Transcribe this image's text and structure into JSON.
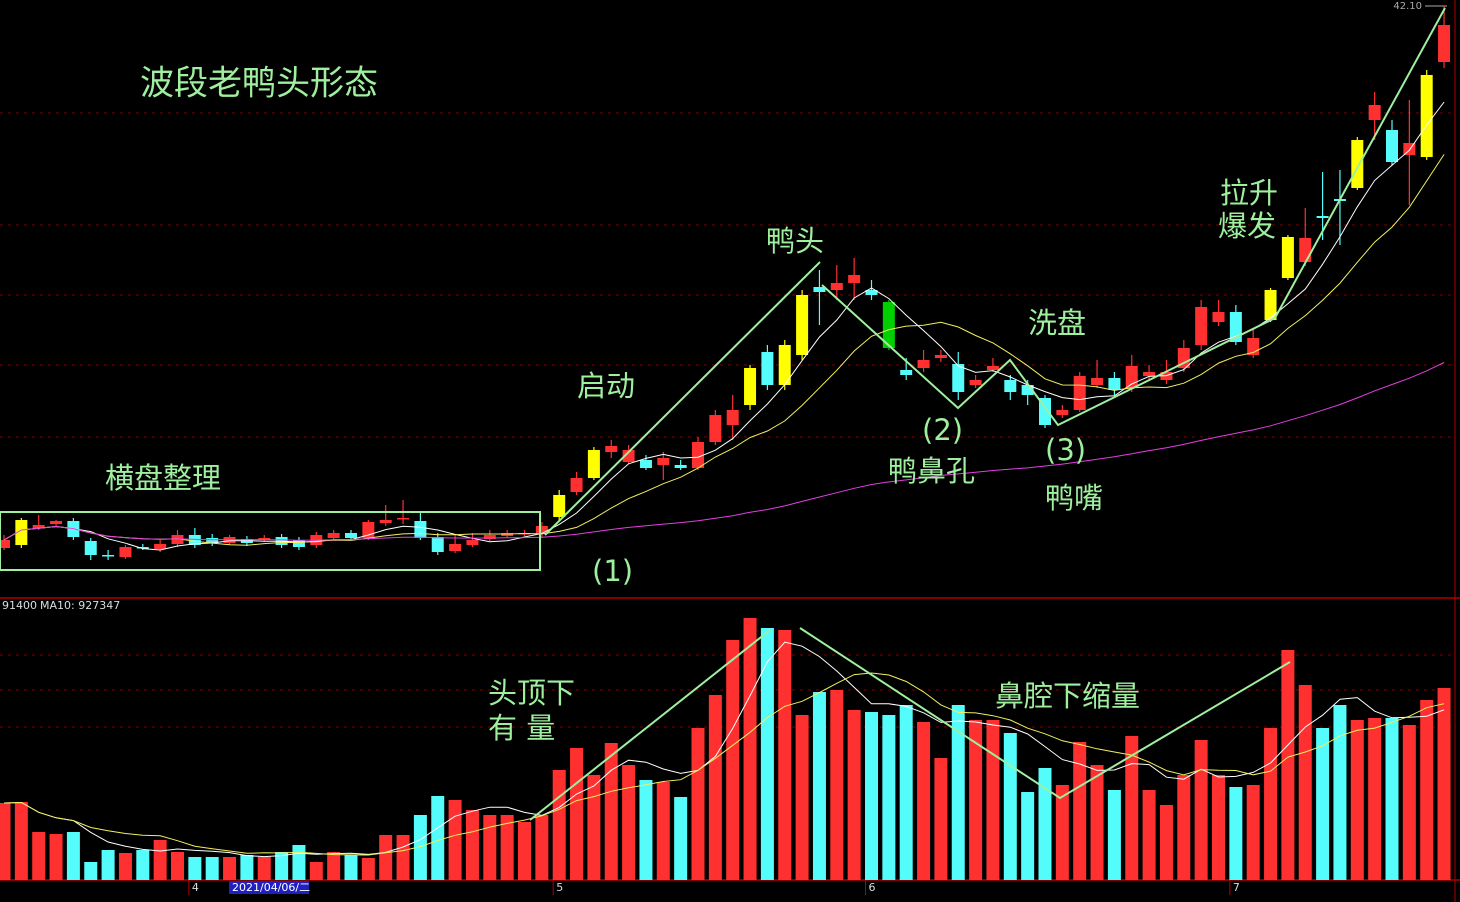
{
  "chart_data": {
    "type": "candlestick",
    "title": "波段老鸭头形态",
    "annotations": [
      "横盘整理",
      "启动",
      "鸭头",
      "洗盘",
      "(2)",
      "鸭鼻孔",
      "(3)",
      "鸭嘴",
      "(1)",
      "拉升",
      "爆发",
      "头顶下",
      "有  量",
      "鼻腔下缩量"
    ],
    "categories": [
      null,
      null,
      null,
      null,
      null,
      null,
      null,
      null,
      null,
      null,
      null,
      "4",
      null,
      null,
      null,
      null,
      null,
      null,
      null,
      null,
      null,
      null,
      null,
      null,
      null,
      null,
      null,
      null,
      null,
      null,
      null,
      null,
      "5",
      null,
      null,
      null,
      null,
      null,
      null,
      null,
      null,
      null,
      null,
      null,
      null,
      null,
      null,
      null,
      null,
      null,
      "6",
      null,
      null,
      null,
      null,
      null,
      null,
      null,
      null,
      null,
      null,
      null,
      null,
      null,
      null,
      null,
      null,
      null,
      null,
      null,
      null,
      "7",
      null,
      null,
      null,
      null,
      null,
      null,
      null,
      null,
      null,
      null,
      null,
      null
    ],
    "cursor_date": "2021/04/06/二",
    "open": [
      20.42,
      20.54,
      21.22,
      21.38,
      21.5,
      20.7,
      20.14,
      20.06,
      20.46,
      20.38,
      20.58,
      20.94,
      20.82,
      20.62,
      20.78,
      20.74,
      20.86,
      20.74,
      20.54,
      20.82,
      21.02,
      20.82,
      21.42,
      21.58,
      21.5,
      20.86,
      20.3,
      20.54,
      20.78,
      20.9,
      20.98,
      20.98,
      21.66,
      22.66,
      23.22,
      24.26,
      23.86,
      23.94,
      23.74,
      23.74,
      23.62,
      24.66,
      25.34,
      26.14,
      28.26,
      26.94,
      28.14,
      30.86,
      30.74,
      31.02,
      30.74,
      30.26,
      27.54,
      27.62,
      28.02,
      27.78,
      26.94,
      27.54,
      27.14,
      26.94,
      26.42,
      25.74,
      25.94,
      26.94,
      27.22,
      26.82,
      27.3,
      27.14,
      27.62,
      28.54,
      29.46,
      29.86,
      28.14,
      29.54,
      31.22,
      31.86,
      33.7,
      34.38,
      34.82,
      37.54,
      37.14,
      36.14,
      36.06,
      39.86
    ],
    "high": [
      20.94,
      21.62,
      21.74,
      21.54,
      21.62,
      20.82,
      20.34,
      20.54,
      20.58,
      20.74,
      21.14,
      21.22,
      20.98,
      20.94,
      20.9,
      20.94,
      20.98,
      20.86,
      21.06,
      21.14,
      21.14,
      21.54,
      22.14,
      22.34,
      21.86,
      21.02,
      20.94,
      21.02,
      21.14,
      21.14,
      21.14,
      21.46,
      22.74,
      23.46,
      24.46,
      24.74,
      24.54,
      24.14,
      24.26,
      23.94,
      24.86,
      25.94,
      26.54,
      27.74,
      28.54,
      28.74,
      30.74,
      31.54,
      31.74,
      32.02,
      31.14,
      30.34,
      28.02,
      28.34,
      28.34,
      28.26,
      27.34,
      28.02,
      27.34,
      27.14,
      26.54,
      26.14,
      27.46,
      27.94,
      27.46,
      28.14,
      27.74,
      27.94,
      28.74,
      30.34,
      30.34,
      30.14,
      29.14,
      30.82,
      32.94,
      34.02,
      35.46,
      35.54,
      36.86,
      38.66,
      37.54,
      38.34,
      39.54,
      42.1
    ],
    "low": [
      20.34,
      20.42,
      21.14,
      21.3,
      20.74,
      19.94,
      19.94,
      19.98,
      20.34,
      20.26,
      20.46,
      20.42,
      20.5,
      20.54,
      20.5,
      20.66,
      20.42,
      20.34,
      20.42,
      20.74,
      20.74,
      20.74,
      21.3,
      21.38,
      20.74,
      20.14,
      20.22,
      20.46,
      20.7,
      20.82,
      20.9,
      20.82,
      21.54,
      22.54,
      23.14,
      24.02,
      23.78,
      23.54,
      23.14,
      23.54,
      23.54,
      24.54,
      24.74,
      25.94,
      26.74,
      26.74,
      27.94,
      29.34,
      30.34,
      30.34,
      30.34,
      28.34,
      27.14,
      27.46,
      27.86,
      26.34,
      26.82,
      27.46,
      26.34,
      26.14,
      25.22,
      25.62,
      25.86,
      26.82,
      26.54,
      26.66,
      27.14,
      26.98,
      27.46,
      28.34,
      29.3,
      28.54,
      28.02,
      29.46,
      31.14,
      31.7,
      32.74,
      32.54,
      34.74,
      36.74,
      35.74,
      34.14,
      35.94,
      39.62
    ],
    "close": [
      20.74,
      21.54,
      21.34,
      21.5,
      20.86,
      20.14,
      20.1,
      20.46,
      20.42,
      20.58,
      20.94,
      20.54,
      20.62,
      20.86,
      20.62,
      20.82,
      20.54,
      20.46,
      20.94,
      21.02,
      20.82,
      21.46,
      21.54,
      21.62,
      20.82,
      20.26,
      20.58,
      20.74,
      20.94,
      21.02,
      21.02,
      21.3,
      22.54,
      23.22,
      24.34,
      24.5,
      24.34,
      23.62,
      24.02,
      23.62,
      24.66,
      25.74,
      25.94,
      27.62,
      26.94,
      28.54,
      30.54,
      30.66,
      31.02,
      31.34,
      30.54,
      28.42,
      27.34,
      27.94,
      28.14,
      26.66,
      27.14,
      27.7,
      26.66,
      26.54,
      25.34,
      25.94,
      27.3,
      27.22,
      26.74,
      27.7,
      27.46,
      27.46,
      28.42,
      30.06,
      29.86,
      28.66,
      28.82,
      30.74,
      32.86,
      32.82,
      33.62,
      34.3,
      36.74,
      38.14,
      35.86,
      36.62,
      39.34,
      41.34
    ],
    "colors": [
      "#ff3030",
      "#ffff00",
      "#ff3030",
      "#ff3030",
      "#54fcfc",
      "#54fcfc",
      "#54fcfc",
      "#ff3030",
      "#54fcfc",
      "#ff3030",
      "#ff3030",
      "#54fcfc",
      "#54fcfc",
      "#ff3030",
      "#54fcfc",
      "#ff3030",
      "#54fcfc",
      "#54fcfc",
      "#ff3030",
      "#ff3030",
      "#54fcfc",
      "#ff3030",
      "#ff3030",
      "#ff3030",
      "#54fcfc",
      "#54fcfc",
      "#ff3030",
      "#ff3030",
      "#ff3030",
      "#ff3030",
      "#ff3030",
      "#ff3030",
      "#ffff00",
      "#ff3030",
      "#ffff00",
      "#ff3030",
      "#ff3030",
      "#54fcfc",
      "#ff3030",
      "#54fcfc",
      "#ff3030",
      "#ff3030",
      "#ff3030",
      "#ffff00",
      "#54fcfc",
      "#ffff00",
      "#ffff00",
      "#54fcfc",
      "#ff3030",
      "#ff3030",
      "#54fcfc",
      "#00d000",
      "#54fcfc",
      "#ff3030",
      "#ff3030",
      "#54fcfc",
      "#ff3030",
      "#ff3030",
      "#54fcfc",
      "#54fcfc",
      "#54fcfc",
      "#ff3030",
      "#ff3030",
      "#ff3030",
      "#54fcfc",
      "#ff3030",
      "#ff3030",
      "#ff3030",
      "#ff3030",
      "#ff3030",
      "#ff3030",
      "#54fcfc",
      "#ff3030",
      "#ffff00",
      "#ffff00",
      "#ff3030",
      "#54fcfc",
      "#54fcfc",
      "#ffff00",
      "#ff3030",
      "#54fcfc",
      "#ff3030",
      "#ffff00",
      "#ff3030"
    ],
    "ylim": [
      18.5,
      42.1
    ],
    "yticks": [
      {
        "value": 42.1,
        "label": "42.10"
      }
    ],
    "grid_lines": [
      37.82,
      33.34,
      30.54,
      27.74,
      24.86
    ],
    "ma": [
      {
        "period": 5,
        "color": "#ffffff"
      },
      {
        "period": 10,
        "color": "#f0f060"
      },
      {
        "period": 60,
        "color": "#e040e0"
      }
    ],
    "volume": [
      654500,
      663000,
      408000,
      391000,
      408000,
      153000,
      255000,
      229500,
      255000,
      340000,
      238000,
      195500,
      195500,
      195500,
      212500,
      195500,
      238000,
      297500,
      153000,
      238000,
      212500,
      187000,
      382500,
      382500,
      552500,
      714000,
      680000,
      595000,
      552500,
      552500,
      493000,
      552500,
      935000,
      1122000,
      892500,
      1164500,
      977500,
      850000,
      833000,
      705500,
      1292000,
      1572500,
      2040000,
      2227000,
      2142000,
      2125000,
      1402500,
      1598000,
      1615000,
      1445000,
      1428000,
      1402500,
      1487500,
      1343000,
      1037000,
      1487500,
      1360000,
      1360000,
      1249500,
      748000,
      952000,
      807500,
      1173000,
      977500,
      765000,
      1224000,
      765000,
      637500,
      892500,
      1190000,
      892500,
      790500,
      807500,
      1292000,
      1955000,
      1657500,
      1292000,
      1487500,
      1360000,
      1377000,
      1377000,
      1317500,
      1530000,
      1632000
    ],
    "volume_up_color": "#ff3030",
    "volume_down_color": "#54fcfc",
    "volume_lim": [
      0,
      2380000
    ],
    "volume_grid_lines": [
      1912500,
      1615000,
      1300500
    ],
    "volume_ma": [
      {
        "period": 5,
        "color": "#ffffff"
      },
      {
        "period": 10,
        "color": "#f0f060"
      }
    ],
    "volume_legend": [
      "91400",
      "MA10: 927347"
    ]
  }
}
